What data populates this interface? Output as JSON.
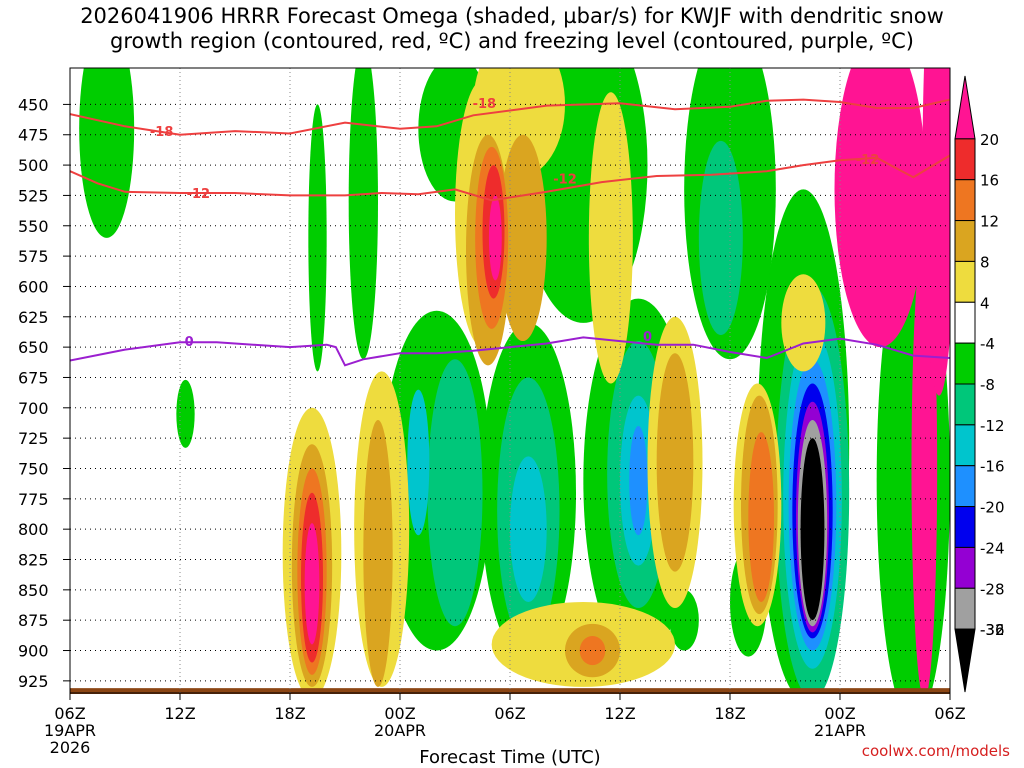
{
  "title": "2026041906 HRRR Forecast Omega (shaded, µbar/s) for KWJF with dendritic snow\ngrowth region (contoured, red, ºC) and freezing level (contoured, purple, ºC)",
  "credit": "coolwx.com/models",
  "chart_data": {
    "type": "heatmap",
    "title": "2026041906 HRRR Forecast Omega (shaded, µbar/s) for KWJF with dendritic snow growth region (contoured, red, ºC) and freezing level (contoured, purple, ºC)",
    "xlabel": "Forecast Time (UTC)",
    "ylabel": "",
    "x_ticks": [
      {
        "hour": 0,
        "labels": [
          "06Z",
          "19APR",
          "2026"
        ]
      },
      {
        "hour": 6,
        "labels": [
          "12Z"
        ]
      },
      {
        "hour": 12,
        "labels": [
          "18Z"
        ]
      },
      {
        "hour": 18,
        "labels": [
          "00Z",
          "20APR"
        ]
      },
      {
        "hour": 24,
        "labels": [
          "06Z"
        ]
      },
      {
        "hour": 30,
        "labels": [
          "12Z"
        ]
      },
      {
        "hour": 36,
        "labels": [
          "18Z"
        ]
      },
      {
        "hour": 42,
        "labels": [
          "00Z",
          "21APR"
        ]
      },
      {
        "hour": 48,
        "labels": [
          "06Z"
        ]
      }
    ],
    "xlim_hours": [
      0,
      48
    ],
    "y_ticks": [
      450,
      475,
      500,
      525,
      550,
      575,
      600,
      625,
      650,
      675,
      700,
      725,
      750,
      775,
      800,
      825,
      850,
      875,
      900,
      925
    ],
    "ylim_mb": [
      420,
      935
    ],
    "grid": true,
    "colorbar": {
      "levels": [
        20,
        16,
        12,
        8,
        4,
        -4,
        -8,
        -12,
        -16,
        -20,
        -24,
        -28,
        -32,
        -36
      ],
      "colors": [
        "#ff1493",
        "#ee2c2c",
        "#ee7621",
        "#daa520",
        "#eedc3e",
        "#ffffff",
        "#00cd00",
        "#00c77a",
        "#00c5cd",
        "#1e90ff",
        "#0000ee",
        "#9400d3",
        "#a0a0a0",
        "#000000"
      ]
    },
    "shaded_regions": [
      {
        "value": -8,
        "x": 2.0,
        "p": 470,
        "rx": 1.5,
        "ry": 90
      },
      {
        "value": -8,
        "x": 13.5,
        "p": 560,
        "rx": 0.5,
        "ry": 110
      },
      {
        "value": -8,
        "x": 16.0,
        "p": 530,
        "rx": 0.8,
        "ry": 130
      },
      {
        "value": -8,
        "x": 6.3,
        "p": 705,
        "rx": 0.5,
        "ry": 28
      },
      {
        "value": -8,
        "x": 21.0,
        "p": 470,
        "rx": 2.0,
        "ry": 60
      },
      {
        "value": -8,
        "x": 28.0,
        "p": 500,
        "rx": 3.5,
        "ry": 130
      },
      {
        "value": -8,
        "x": 36.0,
        "p": 520,
        "rx": 2.5,
        "ry": 140
      },
      {
        "value": -8,
        "x": 40.0,
        "p": 730,
        "rx": 2.5,
        "ry": 210
      },
      {
        "value": -8,
        "x": 46.0,
        "p": 760,
        "rx": 2.0,
        "ry": 200
      },
      {
        "value": -8,
        "x": 20.0,
        "p": 760,
        "rx": 3.0,
        "ry": 140
      },
      {
        "value": -8,
        "x": 25.0,
        "p": 770,
        "rx": 2.6,
        "ry": 140
      },
      {
        "value": -8,
        "x": 31.0,
        "p": 760,
        "rx": 3.0,
        "ry": 150
      },
      {
        "value": -8,
        "x": 37.0,
        "p": 860,
        "rx": 1.0,
        "ry": 45
      },
      {
        "value": -8,
        "x": 33.5,
        "p": 875,
        "rx": 0.8,
        "ry": 25
      },
      {
        "value": -12,
        "x": 21.0,
        "p": 770,
        "rx": 1.5,
        "ry": 110
      },
      {
        "value": -12,
        "x": 25.0,
        "p": 785,
        "rx": 1.7,
        "ry": 110
      },
      {
        "value": -12,
        "x": 31.0,
        "p": 755,
        "rx": 1.7,
        "ry": 110
      },
      {
        "value": -12,
        "x": 40.5,
        "p": 770,
        "rx": 2.0,
        "ry": 170
      },
      {
        "value": -12,
        "x": 35.5,
        "p": 560,
        "rx": 1.2,
        "ry": 80
      },
      {
        "value": -16,
        "x": 25.0,
        "p": 800,
        "rx": 1.0,
        "ry": 60
      },
      {
        "value": -16,
        "x": 31.0,
        "p": 760,
        "rx": 1.0,
        "ry": 70
      },
      {
        "value": -16,
        "x": 40.5,
        "p": 775,
        "rx": 1.6,
        "ry": 140
      },
      {
        "value": -16,
        "x": 19.0,
        "p": 745,
        "rx": 0.6,
        "ry": 60
      },
      {
        "value": -20,
        "x": 40.5,
        "p": 780,
        "rx": 1.3,
        "ry": 120
      },
      {
        "value": -20,
        "x": 31.0,
        "p": 760,
        "rx": 0.5,
        "ry": 45
      },
      {
        "value": -24,
        "x": 40.5,
        "p": 785,
        "rx": 1.1,
        "ry": 105
      },
      {
        "value": -28,
        "x": 40.5,
        "p": 790,
        "rx": 0.9,
        "ry": 95
      },
      {
        "value": -32,
        "x": 40.5,
        "p": 795,
        "rx": 0.8,
        "ry": 85
      },
      {
        "value": -36,
        "x": 40.5,
        "p": 800,
        "rx": 0.65,
        "ry": 75
      },
      {
        "value": 4,
        "x": 13.2,
        "p": 820,
        "rx": 1.6,
        "ry": 120
      },
      {
        "value": 4,
        "x": 17.0,
        "p": 800,
        "rx": 1.5,
        "ry": 130
      },
      {
        "value": 4,
        "x": 22.5,
        "p": 540,
        "rx": 1.5,
        "ry": 110
      },
      {
        "value": 4,
        "x": 24.5,
        "p": 450,
        "rx": 2.5,
        "ry": 60
      },
      {
        "value": 4,
        "x": 29.5,
        "p": 560,
        "rx": 1.2,
        "ry": 120
      },
      {
        "value": 4,
        "x": 33.0,
        "p": 745,
        "rx": 1.5,
        "ry": 120
      },
      {
        "value": 4,
        "x": 37.5,
        "p": 780,
        "rx": 1.3,
        "ry": 100
      },
      {
        "value": 4,
        "x": 28.0,
        "p": 895,
        "rx": 5.0,
        "ry": 35
      },
      {
        "value": 4,
        "x": 40.0,
        "p": 630,
        "rx": 1.2,
        "ry": 40
      },
      {
        "value": 8,
        "x": 13.2,
        "p": 830,
        "rx": 1.1,
        "ry": 100
      },
      {
        "value": 8,
        "x": 22.8,
        "p": 570,
        "rx": 1.2,
        "ry": 95
      },
      {
        "value": 8,
        "x": 24.7,
        "p": 560,
        "rx": 1.3,
        "ry": 85
      },
      {
        "value": 8,
        "x": 37.6,
        "p": 780,
        "rx": 1.0,
        "ry": 90
      },
      {
        "value": 8,
        "x": 16.8,
        "p": 820,
        "rx": 0.8,
        "ry": 110
      },
      {
        "value": 8,
        "x": 33.0,
        "p": 745,
        "rx": 1.0,
        "ry": 90
      },
      {
        "value": 8,
        "x": 28.5,
        "p": 900,
        "rx": 1.5,
        "ry": 22
      },
      {
        "value": 12,
        "x": 13.2,
        "p": 835,
        "rx": 0.8,
        "ry": 85
      },
      {
        "value": 12,
        "x": 23.0,
        "p": 560,
        "rx": 0.9,
        "ry": 75
      },
      {
        "value": 12,
        "x": 37.7,
        "p": 790,
        "rx": 0.7,
        "ry": 70
      },
      {
        "value": 12,
        "x": 28.5,
        "p": 900,
        "rx": 0.7,
        "ry": 12
      },
      {
        "value": 16,
        "x": 13.2,
        "p": 840,
        "rx": 0.6,
        "ry": 70
      },
      {
        "value": 16,
        "x": 23.1,
        "p": 555,
        "rx": 0.6,
        "ry": 55
      },
      {
        "value": 20,
        "x": 13.2,
        "p": 845,
        "rx": 0.4,
        "ry": 50
      },
      {
        "value": 20,
        "x": 23.2,
        "p": 560,
        "rx": 0.35,
        "ry": 35
      },
      {
        "value": 20,
        "x": 44.2,
        "p": 520,
        "rx": 2.5,
        "ry": 130
      },
      {
        "value": 20,
        "x": 46.6,
        "p": 750,
        "rx": 0.7,
        "ry": 190
      },
      {
        "value": 20,
        "x": 47.4,
        "p": 500,
        "rx": 0.9,
        "ry": 190
      }
    ],
    "contours": [
      {
        "name": "-18",
        "color": "#ee4040",
        "label": "-18",
        "points": [
          [
            0,
            458
          ],
          [
            3,
            468
          ],
          [
            6,
            475
          ],
          [
            9,
            472
          ],
          [
            12,
            474
          ],
          [
            15,
            465
          ],
          [
            18,
            470
          ],
          [
            20,
            468
          ],
          [
            22,
            459
          ],
          [
            24,
            455
          ],
          [
            26,
            451
          ],
          [
            30,
            449
          ],
          [
            33,
            454
          ],
          [
            36,
            452
          ],
          [
            38,
            447
          ],
          [
            40,
            446
          ],
          [
            42,
            448
          ],
          [
            44,
            453
          ],
          [
            46,
            453
          ],
          [
            48,
            446
          ]
        ]
      },
      {
        "name": "-12",
        "color": "#ee4040",
        "label": "-12",
        "points": [
          [
            0,
            505
          ],
          [
            1.5,
            515
          ],
          [
            3,
            522
          ],
          [
            6,
            523
          ],
          [
            9,
            523
          ],
          [
            12,
            525
          ],
          [
            15,
            525
          ],
          [
            17,
            523
          ],
          [
            19,
            524
          ],
          [
            21,
            520
          ],
          [
            23,
            529
          ],
          [
            26,
            522
          ],
          [
            29,
            514
          ],
          [
            32,
            509
          ],
          [
            35,
            508
          ],
          [
            38,
            505
          ],
          [
            40,
            500
          ],
          [
            42,
            496
          ],
          [
            44,
            494
          ],
          [
            46,
            510
          ],
          [
            48,
            492
          ]
        ]
      },
      {
        "name": "0",
        "color": "#9b1fd0",
        "label": "0",
        "points": [
          [
            0,
            661
          ],
          [
            3,
            652
          ],
          [
            6,
            646
          ],
          [
            8,
            646
          ],
          [
            10,
            648
          ],
          [
            12,
            650
          ],
          [
            14,
            648
          ],
          [
            14.5,
            650
          ],
          [
            15,
            665
          ],
          [
            16,
            660
          ],
          [
            18,
            655
          ],
          [
            20,
            655
          ],
          [
            22,
            653
          ],
          [
            24,
            650
          ],
          [
            26,
            647
          ],
          [
            28,
            642
          ],
          [
            30,
            645
          ],
          [
            32,
            648
          ],
          [
            34,
            648
          ],
          [
            36,
            654
          ],
          [
            38,
            659
          ],
          [
            40,
            647
          ],
          [
            42,
            643
          ],
          [
            44,
            648
          ],
          [
            46,
            657
          ],
          [
            48,
            659
          ]
        ]
      }
    ],
    "contour_labels": [
      {
        "text": "-18",
        "x": 5.0,
        "p": 472
      },
      {
        "text": "-18",
        "x": 22.6,
        "p": 449
      },
      {
        "text": "-12",
        "x": 7.0,
        "p": 523
      },
      {
        "text": "-12",
        "x": 27.0,
        "p": 511
      },
      {
        "text": "-12",
        "x": 43.5,
        "p": 495
      },
      {
        "text": "0",
        "x": 6.5,
        "p": 645
      },
      {
        "text": "0",
        "x": 31.5,
        "p": 641
      }
    ]
  }
}
